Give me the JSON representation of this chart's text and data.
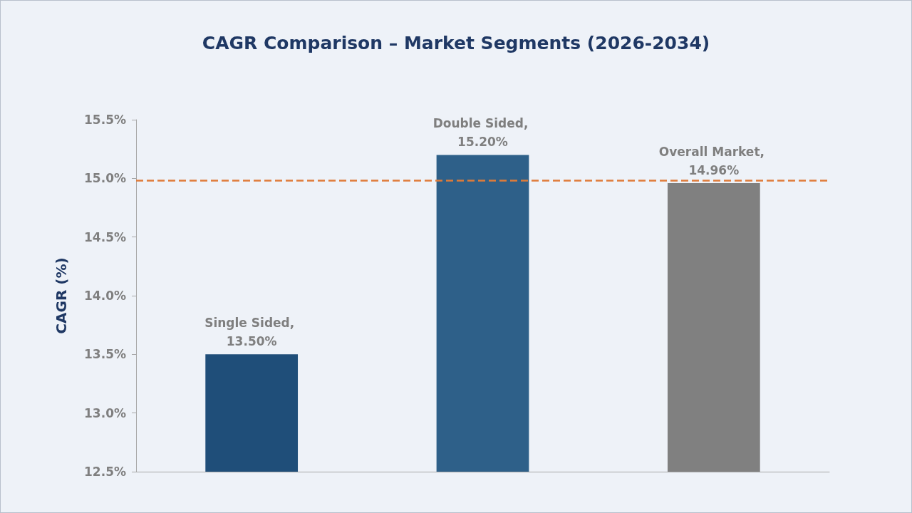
{
  "chart_data": {
    "type": "bar",
    "title": "CAGR Comparison – Market Segments (2026-2034)",
    "ylabel": "CAGR (%)",
    "categories": [
      null,
      null,
      null
    ],
    "values": [
      13.5,
      15.2,
      14.96
    ],
    "colors": [
      "#1f4e79",
      "#2e6089",
      "#808080"
    ],
    "value_labels": [
      "Single Sided, 13.50%",
      "Double Sided, 15.20%",
      "Overall Market, 14.96%"
    ],
    "ylim": [
      12.5,
      15.5
    ],
    "yticks": [
      {
        "value": 12.5,
        "label": "12.5%"
      },
      {
        "value": 13,
        "label": "13.0%"
      },
      {
        "value": 13.5,
        "label": "13.5%"
      },
      {
        "value": 14,
        "label": "14.0%"
      },
      {
        "value": 14.5,
        "label": "14.5%"
      },
      {
        "value": 15,
        "label": "15.0%"
      },
      {
        "value": 15.5,
        "label": "15.5%"
      }
    ],
    "ref_lines": [
      {
        "axis": "y",
        "value": 14.98,
        "color": "#e07b39",
        "line_style": "dashed"
      }
    ],
    "grid": false
  }
}
